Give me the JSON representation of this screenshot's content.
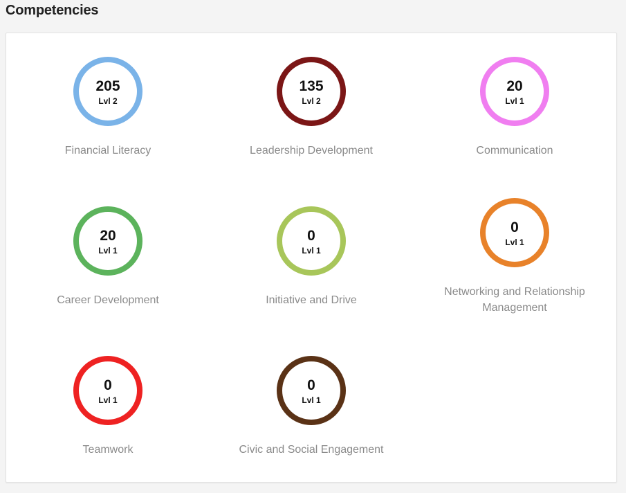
{
  "page": {
    "title": "Competencies"
  },
  "competencies": [
    {
      "name": "Financial Literacy",
      "points": "205",
      "level": "Lvl 2",
      "color": "#7ab3e8"
    },
    {
      "name": "Leadership Development",
      "points": "135",
      "level": "Lvl 2",
      "color": "#7b1616"
    },
    {
      "name": "Communication",
      "points": "20",
      "level": "Lvl 1",
      "color": "#f07ef0"
    },
    {
      "name": "Career Development",
      "points": "20",
      "level": "Lvl 1",
      "color": "#5cb35c"
    },
    {
      "name": "Initiative and Drive",
      "points": "0",
      "level": "Lvl 1",
      "color": "#a8c65a"
    },
    {
      "name": "Networking and Relationship Management",
      "points": "0",
      "level": "Lvl 1",
      "color": "#e8822a"
    },
    {
      "name": "Teamwork",
      "points": "0",
      "level": "Lvl 1",
      "color": "#ee2222"
    },
    {
      "name": "Civic and Social Engagement",
      "points": "0",
      "level": "Lvl 1",
      "color": "#5a3216"
    }
  ]
}
